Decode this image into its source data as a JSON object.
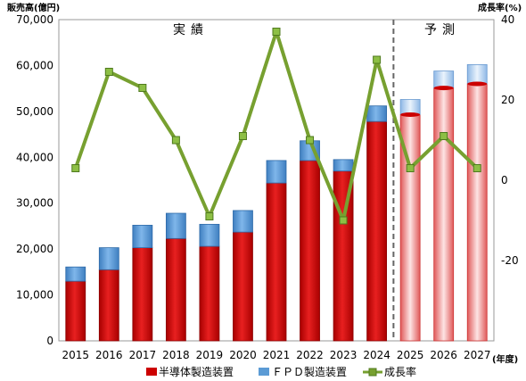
{
  "chart_data": {
    "type": "bar",
    "stacked": true,
    "categories": [
      "2015",
      "2016",
      "2017",
      "2018",
      "2019",
      "2020",
      "2021",
      "2022",
      "2023",
      "2024",
      "2025",
      "2026",
      "2027"
    ],
    "series": [
      {
        "name": "半導体製造装置",
        "color": "#cc0000",
        "values": [
          13000,
          15500,
          20300,
          22300,
          20600,
          23700,
          34400,
          39300,
          37000,
          47800,
          49300,
          55100,
          56000
        ]
      },
      {
        "name": "ＦＰＤ製造装置",
        "color": "#5b9bd5",
        "values": [
          3100,
          4800,
          4900,
          5500,
          4800,
          4700,
          4900,
          4300,
          2500,
          3400,
          3300,
          3700,
          4200
        ]
      }
    ],
    "line_series": {
      "name": "成長率",
      "color": "#77a030",
      "values": [
        3,
        27,
        23,
        10,
        -9,
        11,
        37,
        10,
        -10,
        30,
        3,
        11,
        3
      ]
    },
    "ylim": [
      0,
      70000
    ],
    "y2lim": [
      -40,
      40
    ],
    "yticks": [
      "0",
      "10,000",
      "20,000",
      "30,000",
      "40,000",
      "50,000",
      "60,000",
      "70,000"
    ],
    "y2ticks": [
      "-20",
      "0",
      "20",
      "40"
    ],
    "ylabel": "販売高(億円)",
    "y2label": "成長率(%)",
    "xunit": "(年度)",
    "sections": {
      "actual": "実績",
      "forecast": "予測"
    },
    "forecast_start_index": 10,
    "grid": false,
    "legend_position": "bottom"
  }
}
